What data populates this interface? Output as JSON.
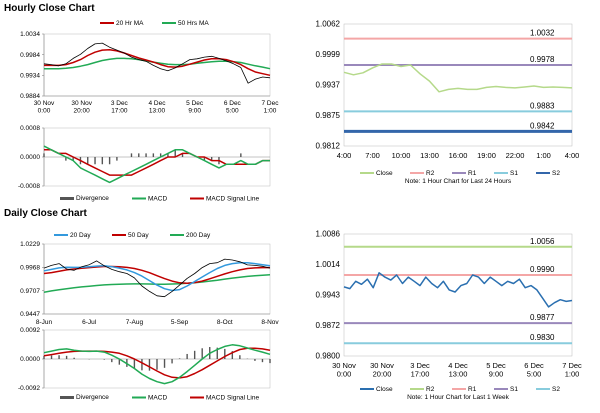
{
  "sections": {
    "hourly_title": "Hourly Close Chart",
    "daily_title": "Daily Close Chart"
  },
  "chart_data": [
    {
      "id": "hourly_price",
      "type": "line",
      "ylim": [
        0.9884,
        1.0034
      ],
      "yticks": [
        "1.0034",
        "0.9984",
        "0.9934",
        "0.9884"
      ],
      "xticks": [
        "30 Nov\n0:00",
        "30 Nov\n20:00",
        "3 Dec\n17:00",
        "4 Dec\n13:00",
        "5 Dec\n9:00",
        "6 Dec\n5:00",
        "7 Dec\n1:00"
      ],
      "legend": [
        "20 Hr MA",
        "50 Hrs MA"
      ],
      "colors": {
        "price": "#000000",
        "ma20": "#c00000",
        "ma50": "#22aa55"
      },
      "series": [
        {
          "name": "Close",
          "values": [
            0.9962,
            0.996,
            0.9957,
            0.9962,
            0.9975,
            0.9985,
            0.9999,
            1.001,
            1.0012,
            1.0002,
            0.9995,
            0.9988,
            0.9978,
            0.9972,
            0.9968,
            0.9958,
            0.995,
            0.9945,
            0.9952,
            0.9962,
            0.9972,
            0.9974,
            0.9978,
            0.998,
            0.9975,
            0.9969,
            0.9962,
            0.9953,
            0.9915,
            0.9925,
            0.993,
            0.9928
          ]
        },
        {
          "name": "20 Hr MA",
          "values": [
            0.9958,
            0.9958,
            0.9958,
            0.996,
            0.9965,
            0.9972,
            0.9982,
            0.999,
            0.9995,
            0.9996,
            0.9993,
            0.9988,
            0.9982,
            0.9976,
            0.9971,
            0.9966,
            0.996,
            0.9955,
            0.9954,
            0.9956,
            0.9961,
            0.9966,
            0.9971,
            0.9974,
            0.9974,
            0.9972,
            0.9967,
            0.996,
            0.995,
            0.9942,
            0.9938,
            0.9934
          ]
        },
        {
          "name": "50 Hrs MA",
          "values": [
            0.995,
            0.995,
            0.995,
            0.9951,
            0.9953,
            0.9956,
            0.996,
            0.9965,
            0.997,
            0.9973,
            0.9975,
            0.9975,
            0.9974,
            0.9972,
            0.9969,
            0.9966,
            0.9963,
            0.9961,
            0.996,
            0.996,
            0.9961,
            0.9963,
            0.9965,
            0.9967,
            0.9968,
            0.9968,
            0.9967,
            0.9965,
            0.9961,
            0.9957,
            0.9954,
            0.995
          ]
        }
      ]
    },
    {
      "id": "hourly_macd",
      "type": "line",
      "ylim": [
        -0.0008,
        0.0008
      ],
      "yticks": [
        "0.0008",
        "0.0000",
        "-0.0008"
      ],
      "legend": [
        "Divergence",
        "MACD",
        "MACD Signal Line"
      ],
      "colors": {
        "divergence": "#555555",
        "macd": "#22aa55",
        "signal": "#c00000"
      },
      "series": [
        {
          "name": "MACD",
          "values": [
            0.0003,
            0.0002,
            0.0001,
            0.0,
            -0.0001,
            -0.0003,
            -0.0004,
            -0.0005,
            -0.0006,
            -0.0007,
            -0.0006,
            -0.0005,
            -0.0004,
            -0.0003,
            -0.0002,
            -0.0001,
            0.0,
            0.0001,
            0.0002,
            0.0002,
            0.0001,
            0.0,
            -0.0001,
            -0.0002,
            -0.0003,
            -0.0002,
            -0.0002,
            -0.0001,
            -0.0002,
            -0.0002,
            -0.0001,
            -0.0001
          ]
        },
        {
          "name": "MACD Signal Line",
          "values": [
            0.0002,
            0.0002,
            0.0001,
            0.0001,
            0.0,
            -0.0001,
            -0.0002,
            -0.0003,
            -0.0004,
            -0.0005,
            -0.0005,
            -0.0005,
            -0.0005,
            -0.0004,
            -0.0003,
            -0.0002,
            -0.0001,
            0.0,
            0.0,
            0.0001,
            0.0001,
            0.0,
            0.0,
            -0.0001,
            -0.0001,
            -0.0002,
            -0.0002,
            -0.0002,
            -0.0002,
            -0.0002,
            -0.0001,
            -0.0001
          ]
        },
        {
          "name": "Divergence",
          "values": [
            0.0001,
            0.0,
            0.0,
            -0.0001,
            -0.0001,
            -0.0002,
            -0.0002,
            -0.0002,
            -0.0002,
            -0.0002,
            -0.0001,
            0.0,
            0.0001,
            0.0001,
            0.0001,
            0.0001,
            0.0001,
            0.0001,
            0.0002,
            0.0001,
            0.0,
            0.0,
            -0.0001,
            -0.0001,
            -0.0002,
            0.0,
            0.0,
            0.0001,
            0.0,
            0.0,
            0.0,
            0.0
          ]
        }
      ]
    },
    {
      "id": "hourly_24h",
      "type": "line",
      "ylim": [
        0.9812,
        1.0062
      ],
      "yticks": [
        "1.0062",
        "0.9999",
        "0.9937",
        "0.9875",
        "0.9812"
      ],
      "xticks": [
        "4:00",
        "7:00",
        "10:00",
        "13:00",
        "16:00",
        "19:00",
        "22:00",
        "1:00",
        "4:00"
      ],
      "legend": [
        "Close",
        "R2",
        "R1",
        "S1",
        "S2"
      ],
      "note": "Note: 1 Hour Chart for Last 24 Hours",
      "levels": [
        {
          "name": "R2",
          "value": 1.0032,
          "label": "1.0032",
          "color": "#f4a6a6"
        },
        {
          "name": "R1",
          "value": 0.9978,
          "label": "0.9978",
          "color": "#9988bb"
        },
        {
          "name": "S1",
          "value": 0.9883,
          "label": "0.9883",
          "color": "#88ccdd"
        },
        {
          "name": "S2",
          "value": 0.9842,
          "label": "0.9842",
          "color": "#3366aa"
        }
      ],
      "series": [
        {
          "name": "Close",
          "color": "#b5d98a",
          "values": [
            0.9963,
            0.9958,
            0.9962,
            0.9972,
            0.998,
            0.998,
            0.9975,
            0.9978,
            0.996,
            0.9945,
            0.9923,
            0.9928,
            0.993,
            0.9928,
            0.9928,
            0.9932,
            0.9934,
            0.9932,
            0.9931,
            0.9933,
            0.9935,
            0.9932,
            0.9933,
            0.9932,
            0.9931
          ]
        }
      ]
    },
    {
      "id": "daily_price",
      "type": "line",
      "ylim": [
        0.9447,
        1.0229
      ],
      "yticks": [
        "1.0229",
        "0.9968",
        "0.9707",
        "0.9447"
      ],
      "xticks": [
        "8-Jun",
        "6-Jul",
        "7-Aug",
        "5-Sep",
        "8-Oct",
        "8-Nov"
      ],
      "legend": [
        "20 Day",
        "50 Day",
        "200 Day"
      ],
      "colors": {
        "price": "#000000",
        "ma20": "#3399dd",
        "ma50": "#c00000",
        "ma200": "#22aa55"
      },
      "series": [
        {
          "name": "Close",
          "values": [
            0.996,
            0.999,
            1.001,
            0.995,
            0.9935,
            0.9975,
            0.9998,
            1.004,
            0.9985,
            0.9945,
            0.992,
            0.99,
            0.985,
            0.976,
            0.97,
            0.965,
            0.964,
            0.97,
            0.977,
            0.9845,
            0.99,
            0.9965,
            1.001,
            1.002,
            1.006,
            1.005,
            1.003,
            0.9995,
            0.999,
            0.998,
            0.996
          ]
        },
        {
          "name": "20 Day",
          "values": [
            0.993,
            0.9945,
            0.9962,
            0.997,
            0.9968,
            0.997,
            0.9975,
            0.9982,
            0.9985,
            0.9975,
            0.996,
            0.994,
            0.991,
            0.987,
            0.982,
            0.977,
            0.973,
            0.971,
            0.972,
            0.976,
            0.981,
            0.986,
            0.991,
            0.9955,
            0.999,
            1.001,
            1.002,
            1.002,
            1.001,
            0.9998,
            0.9985
          ]
        },
        {
          "name": "50 Day",
          "values": [
            0.99,
            0.991,
            0.9925,
            0.994,
            0.995,
            0.9958,
            0.9965,
            0.9972,
            0.9978,
            0.9978,
            0.9975,
            0.9968,
            0.9955,
            0.9935,
            0.9908,
            0.9875,
            0.9842,
            0.9815,
            0.9795,
            0.979,
            0.9798,
            0.9815,
            0.984,
            0.9868,
            0.9895,
            0.992,
            0.994,
            0.9955,
            0.9962,
            0.9965,
            0.9965
          ]
        },
        {
          "name": "200 Day",
          "values": [
            0.969,
            0.9705,
            0.9718,
            0.973,
            0.974,
            0.975,
            0.9758,
            0.9765,
            0.9772,
            0.9777,
            0.978,
            0.9782,
            0.9783,
            0.9783,
            0.9782,
            0.978,
            0.978,
            0.9782,
            0.9785,
            0.979,
            0.9797,
            0.9805,
            0.9815,
            0.9825,
            0.9837,
            0.9848,
            0.9858,
            0.9867,
            0.9874,
            0.988,
            0.9885
          ]
        }
      ]
    },
    {
      "id": "daily_macd",
      "type": "line",
      "ylim": [
        -0.0092,
        0.0092
      ],
      "yticks": [
        "0.0092",
        "0.0000",
        "-0.0092"
      ],
      "legend": [
        "Divergence",
        "MACD",
        "MACD Signal Line"
      ],
      "colors": {
        "divergence": "#555555",
        "macd": "#22aa55",
        "signal": "#c00000"
      },
      "series": [
        {
          "name": "MACD",
          "values": [
            0.002,
            0.0025,
            0.003,
            0.0032,
            0.0028,
            0.0025,
            0.0024,
            0.0025,
            0.0022,
            0.0012,
            0.0,
            -0.0015,
            -0.003,
            -0.0048,
            -0.0062,
            -0.0072,
            -0.0078,
            -0.0072,
            -0.0058,
            -0.004,
            -0.002,
            0.0,
            0.0018,
            0.003,
            0.004,
            0.0045,
            0.0042,
            0.0035,
            0.0028,
            0.0022,
            0.0015
          ]
        },
        {
          "name": "MACD Signal Line",
          "values": [
            0.001,
            0.0014,
            0.0018,
            0.0022,
            0.0024,
            0.0025,
            0.0025,
            0.0025,
            0.0024,
            0.0022,
            0.0018,
            0.001,
            0.0,
            -0.0012,
            -0.0025,
            -0.0038,
            -0.005,
            -0.0058,
            -0.006,
            -0.0056,
            -0.0046,
            -0.0034,
            -0.002,
            -0.0006,
            0.0008,
            0.002,
            0.003,
            0.0034,
            0.0034,
            0.0032,
            0.0028
          ]
        },
        {
          "name": "Divergence",
          "values": [
            0.001,
            0.0011,
            0.0012,
            0.001,
            0.0004,
            0.0,
            -0.0001,
            0.0,
            -0.0002,
            -0.001,
            -0.0018,
            -0.0025,
            -0.003,
            -0.0036,
            -0.0037,
            -0.0034,
            -0.0028,
            -0.0014,
            0.0002,
            0.0016,
            0.0026,
            0.0034,
            0.0038,
            0.0036,
            0.0032,
            0.0025,
            0.0012,
            0.0001,
            -0.0006,
            -0.001,
            -0.0013
          ]
        }
      ]
    },
    {
      "id": "daily_week",
      "type": "line",
      "ylim": [
        0.98,
        1.0086
      ],
      "yticks": [
        "1.0086",
        "1.0014",
        "0.9943",
        "0.9872",
        "0.9800"
      ],
      "xticks": [
        "30 Nov\n0:00",
        "30 Nov\n20:00",
        "3 Dec\n17:00",
        "4 Dec\n13:00",
        "5 Dec\n9:00",
        "6 Dec\n5:00",
        "7 Dec\n1:00"
      ],
      "legend": [
        "Close",
        "R2",
        "R1",
        "S1",
        "S2"
      ],
      "note": "Note: 1 Hour Chart for Last 1 Week",
      "levels": [
        {
          "name": "R2",
          "value": 1.0056,
          "label": "1.0056",
          "color": "#b5d98a"
        },
        {
          "name": "R1",
          "value": 0.999,
          "label": "0.9990",
          "color": "#f4a6a6"
        },
        {
          "name": "S1",
          "value": 0.9877,
          "label": "0.9877",
          "color": "#9988bb"
        },
        {
          "name": "S2",
          "value": 0.983,
          "label": "0.9830",
          "color": "#88ccdd"
        }
      ],
      "series": [
        {
          "name": "Close",
          "color": "#2a6fb0",
          "values": [
            0.9962,
            0.9958,
            0.9975,
            0.9968,
            0.998,
            0.996,
            0.9995,
            0.9985,
            0.9978,
            0.999,
            0.997,
            0.9985,
            0.9975,
            0.9965,
            0.9985,
            0.997,
            0.996,
            0.9975,
            0.9955,
            0.995,
            0.9965,
            0.997,
            0.999,
            0.9985,
            0.997,
            0.9985,
            0.9975,
            0.9965,
            0.9975,
            0.997,
            0.998,
            0.996,
            0.9965,
            0.9955,
            0.9935,
            0.9915,
            0.9925,
            0.9932,
            0.9928,
            0.993
          ]
        }
      ]
    }
  ]
}
